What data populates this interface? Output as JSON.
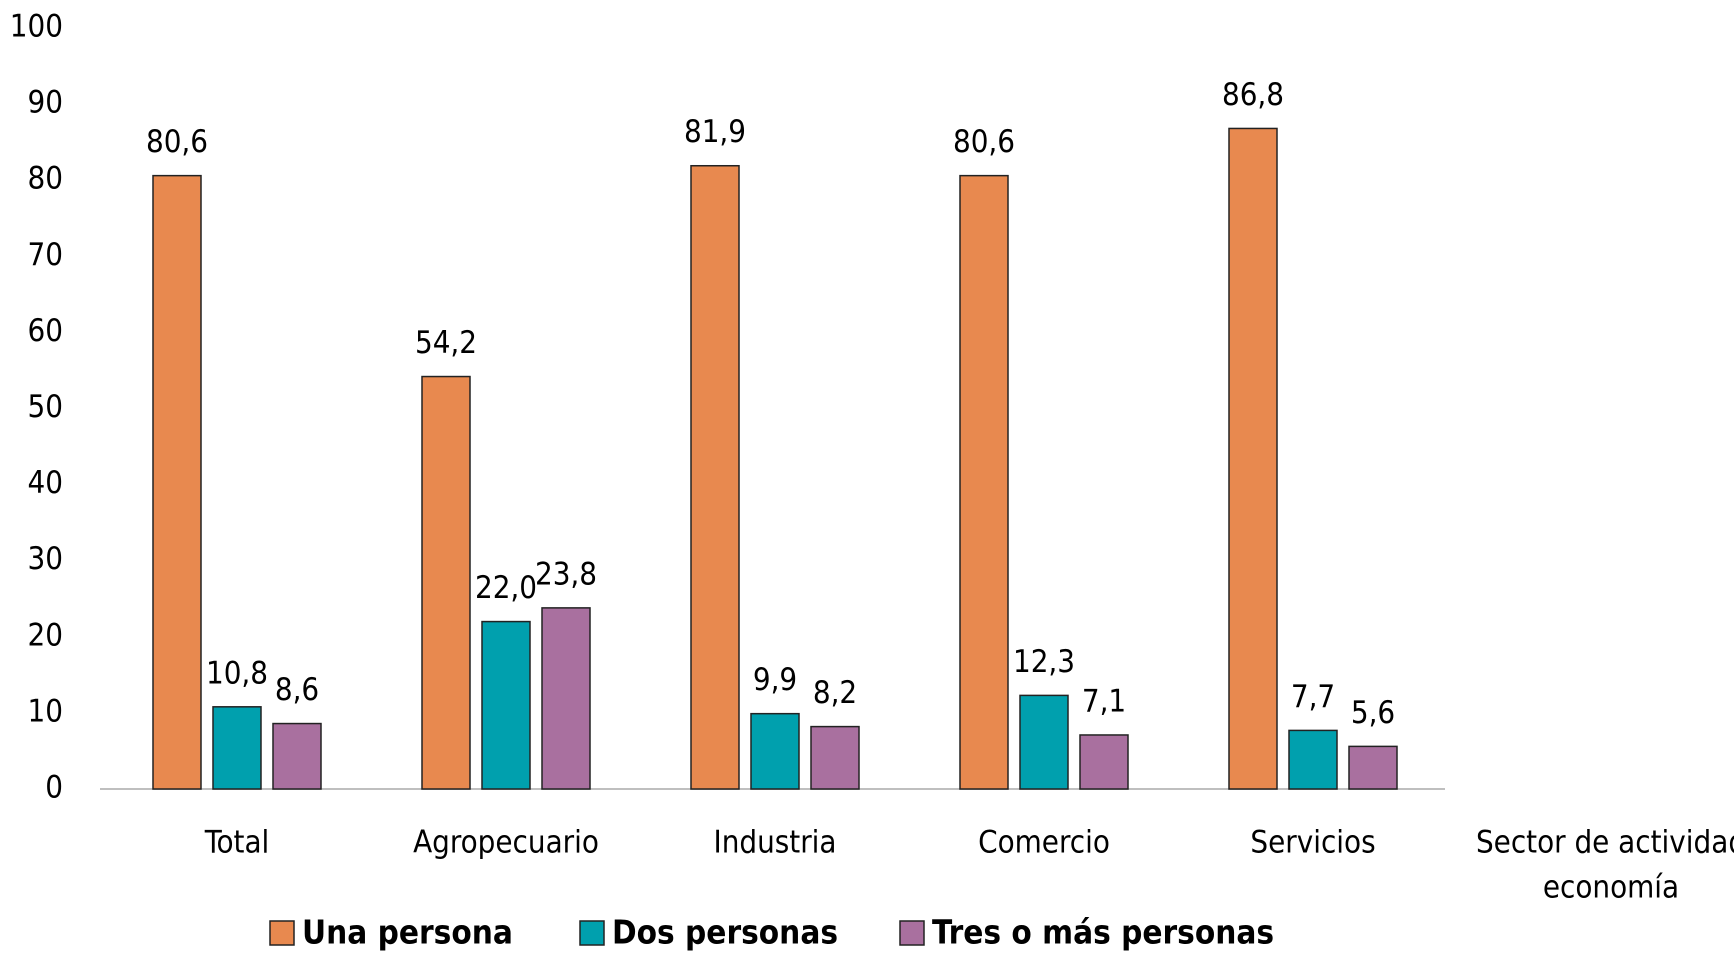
{
  "chart_data": {
    "type": "bar",
    "categories": [
      "Total",
      "Agropecuario",
      "Industria",
      "Comercio",
      "Servicios"
    ],
    "series": [
      {
        "name": "Una persona",
        "color": "#E8894F",
        "values": [
          80.6,
          54.2,
          81.9,
          80.6,
          86.8
        ],
        "value_labels": [
          "80,6",
          "54,2",
          "81,9",
          "80,6",
          "86,8"
        ]
      },
      {
        "name": "Dos personas",
        "color": "#00A0AE",
        "values": [
          10.8,
          22.0,
          9.9,
          12.3,
          7.7
        ],
        "value_labels": [
          "10,8",
          "22,0",
          "9,9",
          "12,3",
          "7,7"
        ]
      },
      {
        "name": "Tres o más personas",
        "color": "#A9709F",
        "values": [
          8.6,
          23.8,
          8.2,
          7.1,
          5.6
        ],
        "value_labels": [
          "8,6",
          "23,8",
          "8,2",
          "7,1",
          "5,6"
        ]
      }
    ],
    "xlabel": [
      "Sector de actividad",
      "economía"
    ],
    "ylim": [
      0,
      100
    ],
    "yticks": [
      0,
      10,
      20,
      30,
      40,
      50,
      60,
      70,
      80,
      90,
      100
    ],
    "grid": false,
    "legend": "bottom"
  }
}
